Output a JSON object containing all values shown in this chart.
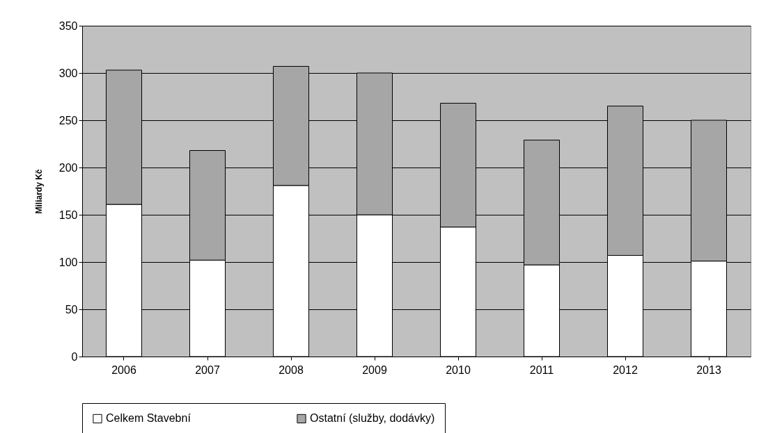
{
  "chart_data": {
    "type": "bar",
    "stacked": true,
    "ylabel": "Miliardy Kč",
    "categories": [
      "2006",
      "2007",
      "2008",
      "2009",
      "2010",
      "2011",
      "2012",
      "2013"
    ],
    "series": [
      {
        "name": "Celkem Stavební",
        "color": "#ffffff",
        "values": [
          161,
          102,
          181,
          150,
          137,
          97,
          107,
          101
        ]
      },
      {
        "name": "Ostatní (služby, dodávky)",
        "color": "#a6a6a6",
        "values": [
          142,
          116,
          126,
          150,
          131,
          132,
          158,
          149
        ]
      }
    ],
    "ylim": [
      0,
      350
    ],
    "yticks": [
      0,
      50,
      100,
      150,
      200,
      250,
      300,
      350
    ],
    "grid": "y",
    "legend": "bottom"
  }
}
